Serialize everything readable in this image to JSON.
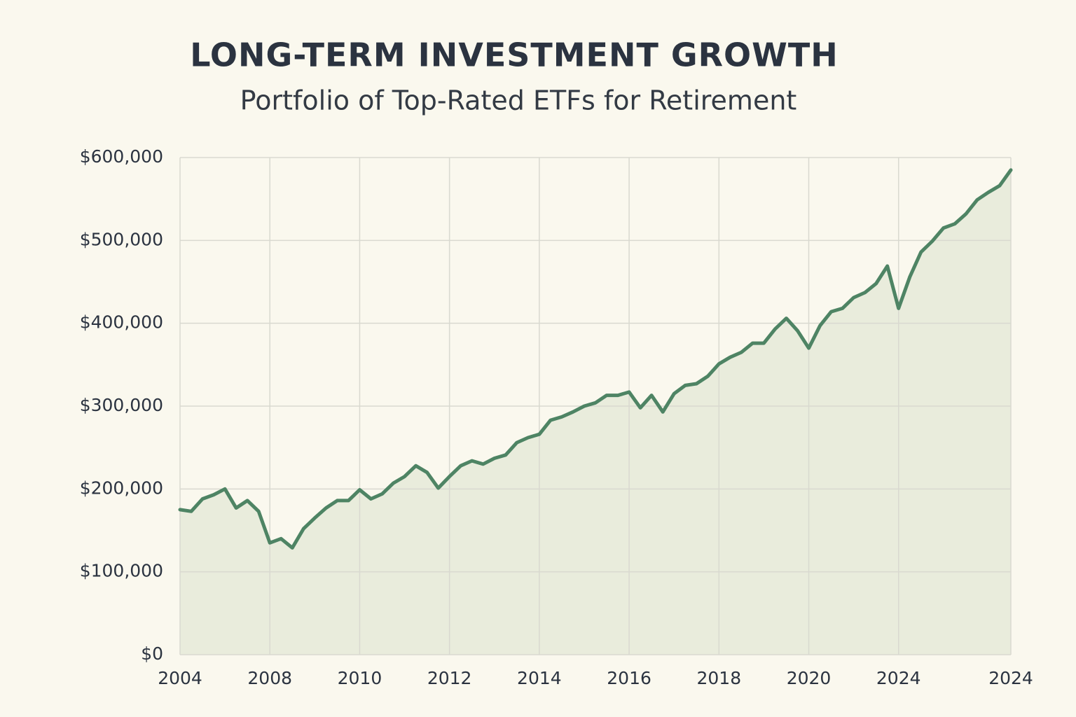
{
  "chart_data": {
    "type": "area",
    "title": "LONG-TERM INVESTMENT GROWTH",
    "subtitle": "Portfolio of Top-Rated ETFs for Retirement",
    "categories": [
      "2004",
      null,
      null,
      null,
      null,
      null,
      null,
      null,
      "2008",
      null,
      null,
      null,
      null,
      null,
      null,
      null,
      "2010",
      null,
      null,
      null,
      null,
      null,
      null,
      null,
      "2012",
      null,
      null,
      null,
      null,
      null,
      null,
      null,
      "2014",
      null,
      null,
      null,
      null,
      null,
      null,
      null,
      "2016",
      null,
      null,
      null,
      null,
      null,
      null,
      null,
      "2018",
      null,
      null,
      null,
      null,
      null,
      null,
      null,
      "2020",
      null,
      null,
      null,
      null,
      null,
      null,
      null,
      "2024",
      null,
      null,
      null,
      null,
      null,
      null,
      null,
      null,
      null,
      "2024"
    ],
    "values": [
      175000,
      173000,
      188000,
      193000,
      200000,
      177000,
      186000,
      173000,
      135000,
      140000,
      129000,
      152000,
      165000,
      177000,
      186000,
      186000,
      199000,
      188000,
      194000,
      207000,
      215000,
      228000,
      220000,
      201000,
      215000,
      228000,
      234000,
      230000,
      237000,
      241000,
      256000,
      262000,
      266000,
      283000,
      287000,
      293000,
      300000,
      304000,
      313000,
      313000,
      317000,
      298000,
      313000,
      293000,
      315000,
      325000,
      327000,
      336000,
      351000,
      359000,
      365000,
      376000,
      376000,
      393000,
      406000,
      391000,
      370000,
      397000,
      414000,
      418000,
      431000,
      437000,
      448000,
      469000,
      418000,
      456000,
      486000,
      499000,
      515000,
      520000,
      532000,
      549000,
      558000,
      566000,
      585000
    ],
    "color": "#4e8464",
    "fill_color": "#e9ecdc",
    "ylim": [
      0,
      600000
    ],
    "yticks": [
      {
        "value": 0,
        "label": "$0"
      },
      {
        "value": 100000,
        "label": "$100,000"
      },
      {
        "value": 200000,
        "label": "$200,000"
      },
      {
        "value": 300000,
        "label": "$300,000"
      },
      {
        "value": 400000,
        "label": "$400,000"
      },
      {
        "value": 500000,
        "label": "$500,000"
      },
      {
        "value": 600000,
        "label": "$600,000"
      }
    ],
    "grid": true
  }
}
